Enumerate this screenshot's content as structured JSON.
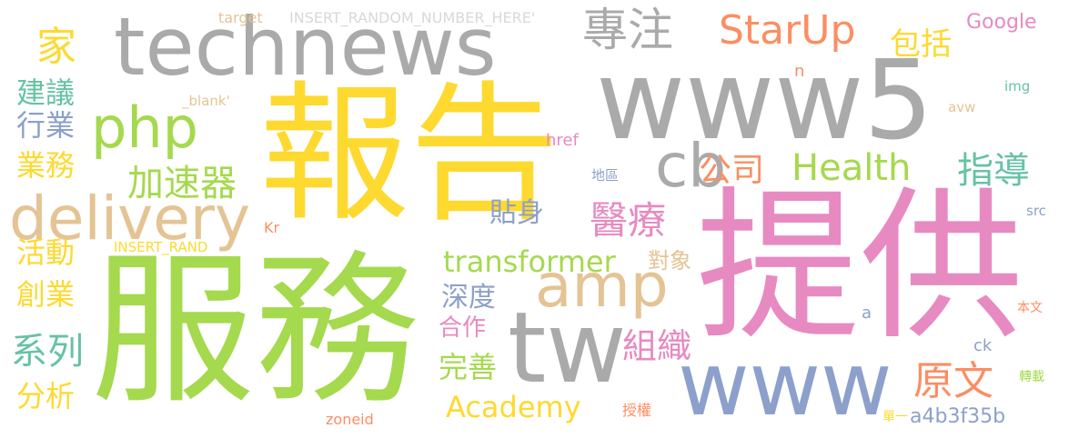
{
  "palette": {
    "gray": "#aaaaaa",
    "yellow": "#fed92f",
    "green": "#a5d94e",
    "pink": "#e78ac2",
    "blue": "#8ca0cb",
    "orange": "#fb8e63",
    "teal": "#66c2a5",
    "tan": "#e4c494"
  },
  "words": [
    {
      "text": "www5"
    },
    {
      "text": "technews"
    },
    {
      "text": "報告"
    },
    {
      "text": "服務"
    },
    {
      "text": "提供"
    },
    {
      "text": "delivery"
    },
    {
      "text": "www"
    },
    {
      "text": "tw"
    },
    {
      "text": "php"
    },
    {
      "text": "amp"
    },
    {
      "text": "cb"
    },
    {
      "text": "專注"
    },
    {
      "text": "StarUp"
    },
    {
      "text": "家"
    },
    {
      "text": "包括"
    },
    {
      "text": "Google"
    },
    {
      "text": "Health"
    },
    {
      "text": "公司"
    },
    {
      "text": "指導"
    },
    {
      "text": "加速器"
    },
    {
      "text": "醫療"
    },
    {
      "text": "貼身"
    },
    {
      "text": "transformer"
    },
    {
      "text": "對象"
    },
    {
      "text": "深度"
    },
    {
      "text": "合作"
    },
    {
      "text": "組織"
    },
    {
      "text": "完善"
    },
    {
      "text": "Academy"
    },
    {
      "text": "原文"
    },
    {
      "text": "a4b3f35b"
    },
    {
      "text": "建議"
    },
    {
      "text": "行業"
    },
    {
      "text": "業務"
    },
    {
      "text": "活動"
    },
    {
      "text": "創業"
    },
    {
      "text": "系列"
    },
    {
      "text": "分析"
    },
    {
      "text": "target"
    },
    {
      "text": "INSERT_RANDOM_NUMBER_HERE'"
    },
    {
      "text": "INSERT_RAND"
    },
    {
      "text": "_blank'"
    },
    {
      "text": "href"
    },
    {
      "text": "Kr"
    },
    {
      "text": "zoneid"
    },
    {
      "text": "授權"
    },
    {
      "text": "單一"
    },
    {
      "text": "轉載"
    },
    {
      "text": "本文"
    },
    {
      "text": "ck"
    },
    {
      "text": "a"
    },
    {
      "text": "src"
    },
    {
      "text": "avw"
    },
    {
      "text": "img"
    },
    {
      "text": "n"
    },
    {
      "text": "地區"
    }
  ]
}
